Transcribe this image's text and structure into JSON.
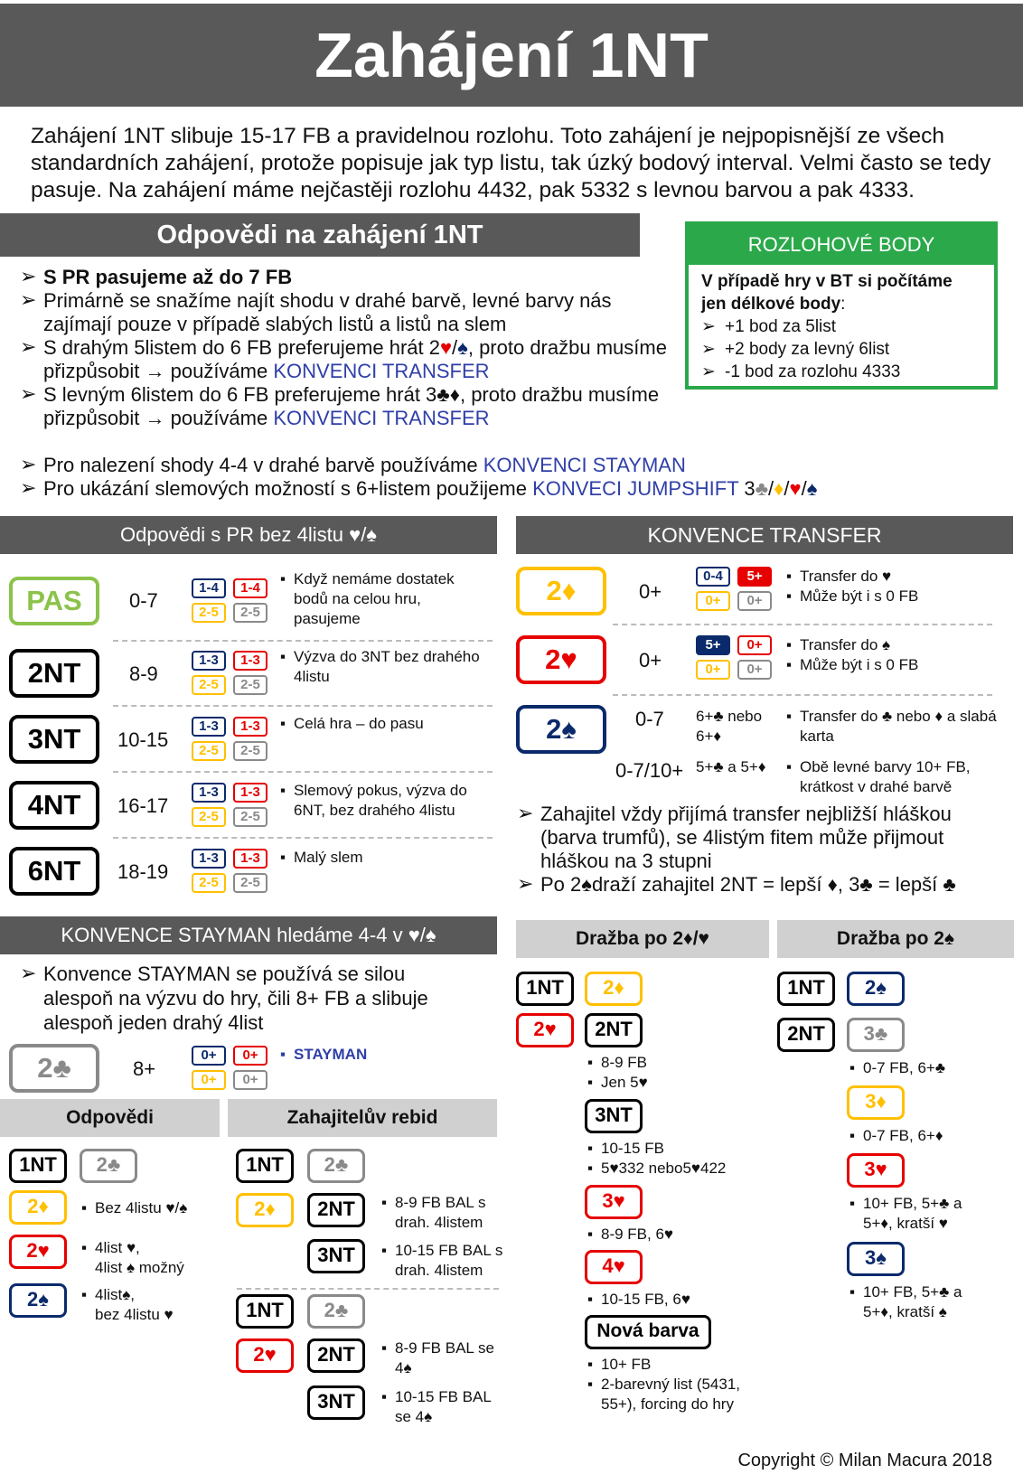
{
  "title": "Zahájení 1NT",
  "intro": "Zahájení 1NT slibuje 15-17 FB a pravidelnou rozlohu. Toto zahájení je nejpopisnější ze všech standardních zahájení, protože popisuje jak typ listu, tak úzký bodový interval. Velmi často se tedy pasuje. Na zahájení máme nejčastěji rozlohu 4432, pak 5332 s levnou barvou a pak 4333.",
  "responses": {
    "header": "Odpovědi na zahájení 1NT",
    "b1": "S PR pasujeme až do 7 FB",
    "b2": "Primárně se snažíme najít shodu v drahé barvě, levné barvy nás zajímají pouze v případě slabých listů a listů na slem",
    "b3a": "S drahým 5listem do 6 FB preferujeme hrát 2",
    "b3b": ", proto dražbu musíme přizpůsobit → používáme ",
    "b4a": "S levným 6listem do 6 FB preferujeme hrát 3",
    "b4b": ", proto dražbu musíme přizpůsobit → používáme ",
    "transfer_link": "KONVENCI TRANSFER",
    "b5": "Pro nalezení shody 4-4 v drahé barvě používáme ",
    "stayman_link": "KONVENCI STAYMAN",
    "b6": "Pro ukázání slemových možností s 6+listem použijeme ",
    "jumpshift_link": "KONVECI JUMPSHIFT",
    "b6c": " 3"
  },
  "points_box": {
    "header": "ROZLOHOVÉ BODY",
    "lead": "V případě hry v BT si počítáme jen délkové body",
    "items": [
      "+1 bod za 5list",
      "+2 body za levný 6list",
      "-1 bod za rozlohu 4333"
    ]
  },
  "nofour": {
    "header": "Odpovědi s PR bez 4listu ♥/♠",
    "rows": [
      {
        "bid": "PAS",
        "range": "0-7",
        "q": [
          "1-4",
          "1-4",
          "2-5",
          "2-5"
        ],
        "desc": "Když nemáme dostatek bodů na celou hru, pasujeme"
      },
      {
        "bid": "2NT",
        "range": "8-9",
        "q": [
          "1-3",
          "1-3",
          "2-5",
          "2-5"
        ],
        "desc": "Výzva do 3NT bez drahého 4listu"
      },
      {
        "bid": "3NT",
        "range": "10-15",
        "q": [
          "1-3",
          "1-3",
          "2-5",
          "2-5"
        ],
        "desc": "Celá hra – do pasu"
      },
      {
        "bid": "4NT",
        "range": "16-17",
        "q": [
          "1-3",
          "1-3",
          "2-5",
          "2-5"
        ],
        "desc": "Slemový pokus, výzva do 6NT, bez drahého 4listu"
      },
      {
        "bid": "6NT",
        "range": "18-19",
        "q": [
          "1-3",
          "1-3",
          "2-5",
          "2-5"
        ],
        "desc": "Malý slem"
      }
    ]
  },
  "transfer": {
    "header": "KONVENCE TRANSFER",
    "rows": [
      {
        "bid": "2♦",
        "range": "0+",
        "q": [
          "0-4",
          "5+",
          "0+",
          "0+"
        ],
        "d1": "Transfer do ♥",
        "d2": "Může být i s 0 FB"
      },
      {
        "bid": "2♥",
        "range": "0+",
        "q": [
          "5+",
          "0+",
          "0+",
          "0+"
        ],
        "d1": "Transfer do ♠",
        "d2": "Může být i s 0 FB"
      },
      {
        "bid": "2♠",
        "range": "0-7",
        "mid": "6+♣ nebo 6+♦",
        "d1": "Transfer do ♣ nebo ♦ a slabá karta"
      },
      {
        "range": "0-7/10+",
        "mid": "5+♣ a 5+♦",
        "d1": "Obě levné barvy 10+ FB, krátkost v drahé barvě"
      }
    ],
    "b1": "Zahajitel vždy přijímá transfer nejbližší hláškou (barva trumfů), se 4listým fitem může přijmout hláškou na 3 stupni",
    "b2": "Po 2♠draží zahajitel 2NT = lepší ♦, 3♣ = lepší ♣"
  },
  "stayman": {
    "header": "KONVENCE STAYMAN hledáme 4-4 v ♥/♠",
    "b1": "Konvence STAYMAN se používá se silou alespoň na výzvu do hry, čili 8+ FB a slibuje alespoň jeden drahý 4list",
    "bid": "2♣",
    "range": "8+",
    "q": [
      "0+",
      "0+",
      "0+",
      "0+"
    ],
    "label": "STAYMAN",
    "answers_header": "Odpovědi",
    "rebid_header": "Zahajitelův rebid",
    "a1": "Bez 4listu ♥/♠",
    "a2a": "4list ♥,",
    "a2b": "4list ♠ možný",
    "a3a": "4list♠,",
    "a3b": "bez 4listu ♥",
    "r1": "8-9 FB BAL s drah. 4listem",
    "r2": "10-15 FB BAL s drah. 4listem",
    "r3": "8-9 FB BAL se 4♠",
    "r4": "10-15 FB BAL se 4♠"
  },
  "after_dh": {
    "header": "Dražba po 2♦/♥",
    "n1": [
      "8-9 FB",
      "Jen 5♥"
    ],
    "n2": [
      "10-15 FB",
      "5♥332 nebo5♥422"
    ],
    "n3": [
      "8-9 FB, 6♥"
    ],
    "n4": [
      "10-15 FB, 6♥"
    ],
    "new_suit": "Nová barva",
    "n5": [
      "10+ FB",
      "2-barevný list (5431, 55+), forcing do hry"
    ]
  },
  "after_s": {
    "header": "Dražba po 2♠",
    "n1": [
      "0-7 FB, 6+♣"
    ],
    "n2": [
      "0-7 FB, 6+♦"
    ],
    "n3": [
      "10+ FB, 5+♣ a 5+♦, kratší ♥"
    ],
    "n4": [
      "10+ FB, 5+♣ a 5+♦, kratší ♠"
    ]
  },
  "copyright": "Copyright © Milan Macura 2018"
}
